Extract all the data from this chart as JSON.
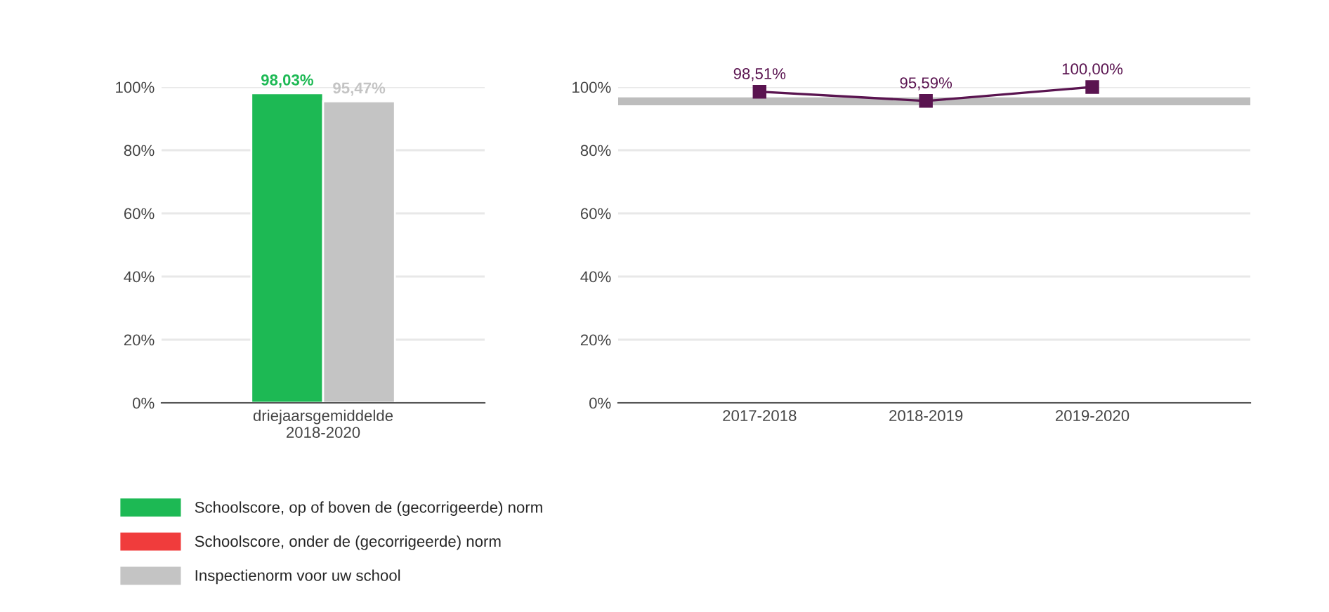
{
  "chart_data": [
    {
      "type": "bar",
      "categories": [
        "driejaarsgemiddelde\n2018-2020"
      ],
      "series": [
        {
          "name": "Schoolscore, op of boven de (gecorrigeerde) norm",
          "color": "#1db954",
          "values": [
            98.03
          ],
          "value_labels": [
            "98,03%"
          ]
        },
        {
          "name": "Schoolscore, onder de (gecorrigeerde) norm",
          "color": "#f03c3c",
          "values": [
            null
          ]
        },
        {
          "name": "Inspectienorm voor uw school",
          "color": "#c4c4c4",
          "values": [
            95.47
          ],
          "value_labels": [
            "95,47%"
          ]
        }
      ],
      "ylim": [
        0,
        100
      ],
      "yticks": [
        {
          "value": 0,
          "label": "0%"
        },
        {
          "value": 20,
          "label": "20%"
        },
        {
          "value": 40,
          "label": "40%"
        },
        {
          "value": 60,
          "label": "60%"
        },
        {
          "value": 80,
          "label": "80%"
        },
        {
          "value": 100,
          "label": "100%"
        }
      ],
      "grid": "y",
      "legend": "bottom"
    },
    {
      "type": "line",
      "categories": [
        "2017-2018",
        "2018-2019",
        "2019-2020"
      ],
      "series": [
        {
          "color": "#5a1450",
          "values": [
            98.51,
            95.59,
            100.0
          ],
          "value_labels": [
            "98,51%",
            "95,59%",
            "100,00%"
          ]
        }
      ],
      "ref_lines": [
        {
          "axis": "y",
          "value": 95.47,
          "color": "#bdbdbd"
        }
      ],
      "ylim": [
        0,
        100
      ],
      "yticks": [
        {
          "value": 0,
          "label": "0%"
        },
        {
          "value": 20,
          "label": "20%"
        },
        {
          "value": 40,
          "label": "40%"
        },
        {
          "value": 60,
          "label": "60%"
        },
        {
          "value": 80,
          "label": "80%"
        },
        {
          "value": 100,
          "label": "100%"
        }
      ],
      "grid": "y",
      "marker": "square",
      "line_style": "solid"
    }
  ]
}
